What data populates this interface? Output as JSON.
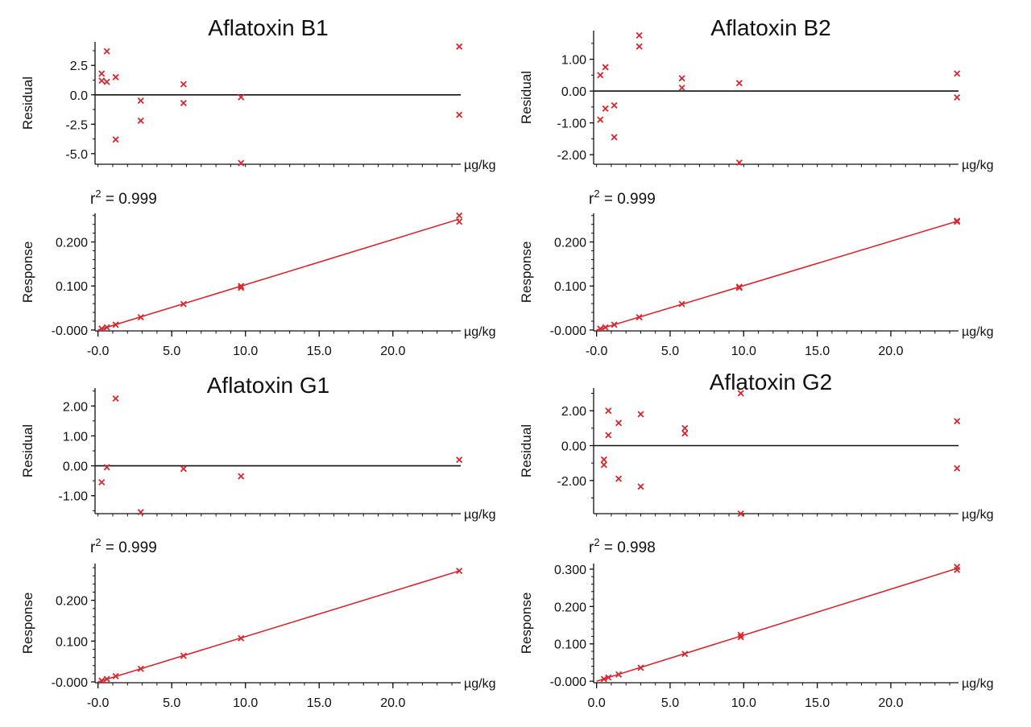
{
  "chart_data": [
    {
      "title": "Aflatoxin B1",
      "r2_prefix": "r",
      "r2_exp": "2",
      "r2_text": " = 0.999",
      "residual": {
        "type": "scatter",
        "ylabel": "Residual",
        "xunit": "µg/kg",
        "ylim": [
          -5.9,
          4.5
        ],
        "yticks": [
          2.5,
          0.0,
          -2.5,
          -5.0
        ],
        "ytick_labels": [
          "2.5",
          "0.0",
          "-2.5",
          "-5.0"
        ],
        "xlim": [
          -0.2,
          24.6
        ],
        "points": [
          [
            0.25,
            1.8
          ],
          [
            0.25,
            1.2
          ],
          [
            0.6,
            1.1
          ],
          [
            0.6,
            3.7
          ],
          [
            1.2,
            1.5
          ],
          [
            1.2,
            -3.8
          ],
          [
            2.9,
            -0.5
          ],
          [
            2.9,
            -2.2
          ],
          [
            5.8,
            0.9
          ],
          [
            5.8,
            -0.7
          ],
          [
            9.7,
            -0.2
          ],
          [
            9.7,
            -5.8
          ],
          [
            24.5,
            4.1
          ],
          [
            24.5,
            -1.7
          ]
        ]
      },
      "response": {
        "type": "scatter",
        "ylabel": "Response",
        "xunit": "µg/kg",
        "ylim": [
          -0.002,
          0.265
        ],
        "xlim": [
          -0.2,
          24.6
        ],
        "yticks": [
          0.2,
          0.1,
          0.0
        ],
        "ytick_labels": [
          "0.200",
          "0.100",
          "-0.000"
        ],
        "xticks": [
          0,
          5,
          10,
          15,
          20
        ],
        "xtick_labels": [
          "-0.0",
          "5.0",
          "10.0",
          "15.0",
          "20.0"
        ],
        "fit": [
          [
            0,
            0.0
          ],
          [
            24.5,
            0.252
          ]
        ],
        "points": [
          [
            0.25,
            0.003
          ],
          [
            0.6,
            0.006
          ],
          [
            1.2,
            0.012
          ],
          [
            2.9,
            0.029
          ],
          [
            5.8,
            0.059
          ],
          [
            9.7,
            0.096
          ],
          [
            9.7,
            0.1
          ],
          [
            24.5,
            0.246
          ],
          [
            24.5,
            0.26
          ]
        ]
      }
    },
    {
      "title": "Aflatoxin B2",
      "r2_prefix": "r",
      "r2_exp": "2",
      "r2_text": " = 0.999",
      "residual": {
        "type": "scatter",
        "ylabel": "Residual",
        "xunit": "µg/kg",
        "ylim": [
          -2.3,
          1.9
        ],
        "yticks": [
          1.0,
          0.0,
          -1.0,
          -2.0
        ],
        "ytick_labels": [
          "1.00",
          "0.00",
          "-1.00",
          "-2.00"
        ],
        "xlim": [
          -0.2,
          24.6
        ],
        "points": [
          [
            0.25,
            0.5
          ],
          [
            0.25,
            -0.9
          ],
          [
            0.6,
            0.75
          ],
          [
            0.6,
            -0.55
          ],
          [
            1.2,
            -0.45
          ],
          [
            1.2,
            -1.45
          ],
          [
            2.9,
            1.75
          ],
          [
            2.9,
            1.4
          ],
          [
            5.8,
            0.4
          ],
          [
            5.8,
            0.1
          ],
          [
            9.7,
            0.25
          ],
          [
            9.7,
            -2.25
          ],
          [
            24.5,
            0.55
          ],
          [
            24.5,
            -0.2
          ]
        ]
      },
      "response": {
        "type": "scatter",
        "ylabel": "Response",
        "xunit": "µg/kg",
        "ylim": [
          -0.002,
          0.265
        ],
        "xlim": [
          -0.2,
          24.6
        ],
        "yticks": [
          0.2,
          0.1,
          0.0
        ],
        "ytick_labels": [
          "0.200",
          "0.100",
          "-0.000"
        ],
        "xticks": [
          0,
          5,
          10,
          15,
          20
        ],
        "xtick_labels": [
          "-0.0",
          "5.0",
          "10.0",
          "15.0",
          "20.0"
        ],
        "fit": [
          [
            0,
            0.0
          ],
          [
            24.5,
            0.247
          ]
        ],
        "points": [
          [
            0.25,
            0.003
          ],
          [
            0.6,
            0.006
          ],
          [
            1.2,
            0.012
          ],
          [
            2.9,
            0.029
          ],
          [
            5.8,
            0.059
          ],
          [
            9.7,
            0.096
          ],
          [
            9.7,
            0.098
          ],
          [
            24.5,
            0.246
          ],
          [
            24.5,
            0.248
          ]
        ]
      }
    },
    {
      "title": "Aflatoxin G1",
      "r2_prefix": "r",
      "r2_exp": "2",
      "r2_text": " = 0.999",
      "residual": {
        "type": "scatter",
        "ylabel": "Residual",
        "xunit": "µg/kg",
        "ylim": [
          -1.6,
          2.6
        ],
        "yticks": [
          2.0,
          1.0,
          0.0,
          -1.0
        ],
        "ytick_labels": [
          "2.00",
          "1.00",
          "0.00",
          "-1.00"
        ],
        "xlim": [
          -0.2,
          24.6
        ],
        "points": [
          [
            0.25,
            -0.55
          ],
          [
            0.6,
            -0.05
          ],
          [
            1.2,
            2.25
          ],
          [
            2.9,
            -1.55
          ],
          [
            5.8,
            -0.1
          ],
          [
            9.7,
            -0.35
          ],
          [
            24.5,
            0.2
          ]
        ]
      },
      "response": {
        "type": "scatter",
        "ylabel": "Response",
        "xunit": "µg/kg",
        "ylim": [
          -0.002,
          0.29
        ],
        "xlim": [
          -0.2,
          24.6
        ],
        "yticks": [
          0.2,
          0.1,
          0.0
        ],
        "ytick_labels": [
          "0.200",
          "0.100",
          "-0.000"
        ],
        "xticks": [
          0,
          5,
          10,
          15,
          20
        ],
        "xtick_labels": [
          "-0.0",
          "5.0",
          "10.0",
          "15.0",
          "20.0"
        ],
        "fit": [
          [
            0,
            0.0
          ],
          [
            24.5,
            0.272
          ]
        ],
        "points": [
          [
            0.25,
            0.003
          ],
          [
            0.6,
            0.007
          ],
          [
            1.2,
            0.014
          ],
          [
            2.9,
            0.032
          ],
          [
            5.8,
            0.064
          ],
          [
            9.7,
            0.107
          ],
          [
            24.5,
            0.272
          ]
        ]
      }
    },
    {
      "title": "Aflatoxin G2",
      "r2_prefix": "r",
      "r2_exp": "2",
      "r2_text": " = 0.998",
      "residual": {
        "type": "scatter",
        "ylabel": "Residual",
        "xunit": "µg/kg",
        "ylim": [
          -3.9,
          3.3
        ],
        "yticks": [
          2.0,
          0.0,
          -2.0
        ],
        "ytick_labels": [
          "2.00",
          "0.00",
          "-2.00"
        ],
        "xlim": [
          -0.2,
          24.6
        ],
        "points": [
          [
            0.5,
            -0.8
          ],
          [
            0.5,
            -1.1
          ],
          [
            0.8,
            2.0
          ],
          [
            0.8,
            0.6
          ],
          [
            1.5,
            1.3
          ],
          [
            1.5,
            -1.9
          ],
          [
            3.0,
            1.8
          ],
          [
            3.0,
            -2.35
          ],
          [
            6.0,
            1.0
          ],
          [
            6.0,
            0.7
          ],
          [
            9.8,
            3.0
          ],
          [
            9.8,
            -3.9
          ],
          [
            24.5,
            1.4
          ],
          [
            24.5,
            -1.3
          ]
        ]
      },
      "response": {
        "type": "scatter",
        "ylabel": "Response",
        "xunit": "µg/kg",
        "ylim": [
          -0.004,
          0.315
        ],
        "xlim": [
          -0.2,
          24.6
        ],
        "yticks": [
          0.3,
          0.2,
          0.1,
          0.0
        ],
        "ytick_labels": [
          "0.300",
          "0.200",
          "0.100",
          "-0.000"
        ],
        "xticks": [
          0,
          5,
          10,
          15,
          20
        ],
        "xtick_labels": [
          "0.0",
          "5.0",
          "10.0",
          "15.0",
          "20.0"
        ],
        "fit": [
          [
            0,
            0.0
          ],
          [
            24.5,
            0.302
          ]
        ],
        "points": [
          [
            0.5,
            0.006
          ],
          [
            0.8,
            0.01
          ],
          [
            1.5,
            0.018
          ],
          [
            3.0,
            0.036
          ],
          [
            6.0,
            0.073
          ],
          [
            9.8,
            0.118
          ],
          [
            9.8,
            0.124
          ],
          [
            24.5,
            0.298
          ],
          [
            24.5,
            0.306
          ]
        ]
      }
    }
  ]
}
